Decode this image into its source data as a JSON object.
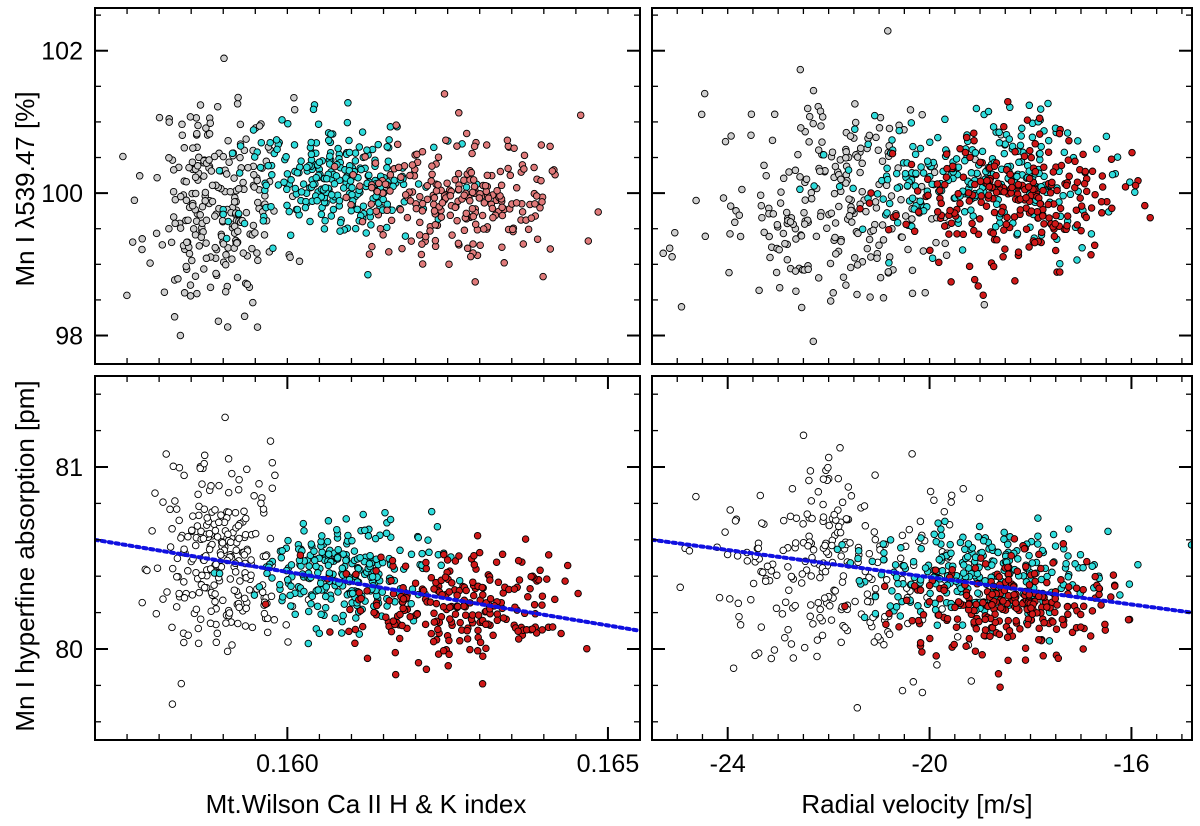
{
  "colors": {
    "low": "#ffffff",
    "mid": "#2fdcdc",
    "high": "#d01818",
    "high_faded": "#e07a7a",
    "low_faded": "#cfcfcf",
    "trend": "#1010e0",
    "axis": "#000000"
  },
  "axis_labels": {
    "y_top": "Mn I λ539.47 [%]",
    "y_bottom": "Mn I hyperfine absorption [pm]",
    "x_left": "Mt.Wilson Ca II H & K index",
    "x_right": "Radial velocity [m/s]"
  },
  "chart_data": [
    {
      "id": "top-left",
      "type": "scatter",
      "xlabel": "",
      "ylabel": "Mn I λ539.47 [%]",
      "xlim": [
        0.157,
        0.1655
      ],
      "ylim": [
        97.6,
        102.6
      ],
      "x_ticks": [],
      "y_ticks": [
        {
          "value": 98,
          "label": "98"
        },
        {
          "value": 100,
          "label": "100"
        },
        {
          "value": 102,
          "label": "102"
        }
      ],
      "y_minor_step": 0.5,
      "x_minor_step": 0.0005,
      "groups": [
        {
          "name": "low",
          "color_key": "low_faded",
          "count": 250,
          "x_mean": 0.1589,
          "x_sd": 0.00052,
          "y_mean": 99.85,
          "y_sd": 0.75,
          "seed": 11
        },
        {
          "name": "mid",
          "color_key": "mid",
          "count": 260,
          "x_mean": 0.1608,
          "x_sd": 0.0007,
          "y_mean": 100.15,
          "y_sd": 0.42,
          "seed": 12
        },
        {
          "name": "high",
          "color_key": "high_faded",
          "count": 240,
          "x_mean": 0.1627,
          "x_sd": 0.00085,
          "y_mean": 99.9,
          "y_sd": 0.45,
          "seed": 13
        }
      ],
      "trend": null
    },
    {
      "id": "top-right",
      "type": "scatter",
      "xlabel": "",
      "ylabel": "",
      "xlim": [
        -25.5,
        -14.8
      ],
      "ylim": [
        97.6,
        102.6
      ],
      "x_ticks": [],
      "y_ticks": [
        {
          "value": 98,
          "label": ""
        },
        {
          "value": 100,
          "label": ""
        },
        {
          "value": 102,
          "label": ""
        }
      ],
      "y_minor_step": 0.5,
      "x_minor_step": 0.5,
      "groups": [
        {
          "name": "low",
          "color_key": "low_faded",
          "count": 250,
          "x_mean": -21.8,
          "x_sd": 1.3,
          "y_mean": 99.8,
          "y_sd": 0.75,
          "seed": 21
        },
        {
          "name": "mid",
          "color_key": "mid",
          "count": 260,
          "x_mean": -19.0,
          "x_sd": 1.2,
          "y_mean": 100.2,
          "y_sd": 0.42,
          "seed": 22
        },
        {
          "name": "high",
          "color_key": "high",
          "count": 240,
          "x_mean": -18.4,
          "x_sd": 1.1,
          "y_mean": 99.9,
          "y_sd": 0.45,
          "seed": 23
        }
      ],
      "trend": null
    },
    {
      "id": "bottom-left",
      "type": "scatter",
      "xlabel": "Mt.Wilson Ca II H & K index",
      "ylabel": "Mn I hyperfine absorption [pm]",
      "xlim": [
        0.157,
        0.1655
      ],
      "ylim": [
        79.5,
        81.5
      ],
      "x_ticks": [
        {
          "value": 0.16,
          "label": "0.160"
        },
        {
          "value": 0.165,
          "label": "0.165"
        }
      ],
      "y_ticks": [
        {
          "value": 80,
          "label": "80"
        },
        {
          "value": 81,
          "label": "81"
        }
      ],
      "y_minor_step": 0.2,
      "x_minor_step": 0.0005,
      "groups": [
        {
          "name": "low",
          "color_key": "low",
          "count": 250,
          "x_mean": 0.1589,
          "x_sd": 0.00052,
          "y_mean": 80.48,
          "y_sd": 0.27,
          "seed": 31
        },
        {
          "name": "mid",
          "color_key": "mid",
          "count": 260,
          "x_mean": 0.1608,
          "x_sd": 0.0007,
          "y_mean": 80.42,
          "y_sd": 0.14,
          "seed": 32
        },
        {
          "name": "high",
          "color_key": "high",
          "count": 240,
          "x_mean": 0.1627,
          "x_sd": 0.00085,
          "y_mean": 80.24,
          "y_sd": 0.14,
          "seed": 33
        }
      ],
      "trend": {
        "x": [
          0.157,
          0.1655
        ],
        "y": [
          80.6,
          80.1
        ]
      }
    },
    {
      "id": "bottom-right",
      "type": "scatter",
      "xlabel": "Radial velocity [m/s]",
      "ylabel": "",
      "xlim": [
        -25.5,
        -14.8
      ],
      "ylim": [
        79.5,
        81.5
      ],
      "x_ticks": [
        {
          "value": -24,
          "label": "-24"
        },
        {
          "value": -20,
          "label": "-20"
        },
        {
          "value": -16,
          "label": "-16"
        }
      ],
      "y_ticks": [
        {
          "value": 80,
          "label": ""
        },
        {
          "value": 81,
          "label": ""
        }
      ],
      "y_minor_step": 0.2,
      "x_minor_step": 0.5,
      "groups": [
        {
          "name": "low",
          "color_key": "low",
          "count": 250,
          "x_mean": -21.8,
          "x_sd": 1.3,
          "y_mean": 80.45,
          "y_sd": 0.27,
          "seed": 41
        },
        {
          "name": "mid",
          "color_key": "mid",
          "count": 260,
          "x_mean": -19.0,
          "x_sd": 1.2,
          "y_mean": 80.42,
          "y_sd": 0.14,
          "seed": 42
        },
        {
          "name": "high",
          "color_key": "high",
          "count": 240,
          "x_mean": -18.4,
          "x_sd": 1.1,
          "y_mean": 80.24,
          "y_sd": 0.14,
          "seed": 43
        }
      ],
      "trend": {
        "x": [
          -25.5,
          -14.8
        ],
        "y": [
          80.6,
          80.2
        ]
      }
    }
  ]
}
